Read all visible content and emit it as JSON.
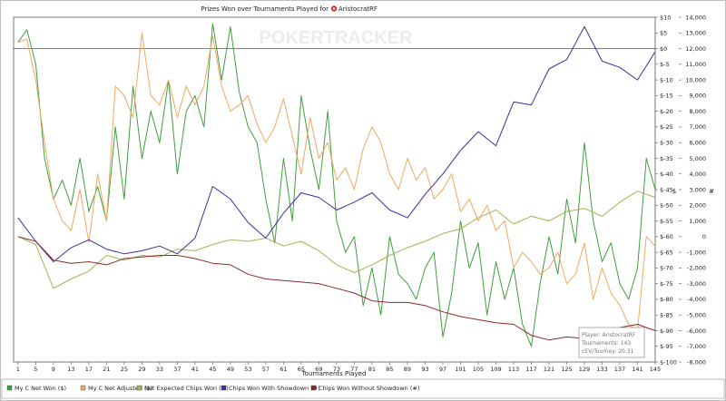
{
  "chart_data": {
    "type": "line",
    "title": "Prizes Won over Tournaments Played for",
    "player": "AristocratRF",
    "watermark": "POKERTRACKER",
    "xlabel": "Tournaments Played",
    "x_ticks": [
      1,
      5,
      9,
      13,
      17,
      21,
      25,
      29,
      33,
      37,
      41,
      45,
      49,
      53,
      57,
      61,
      65,
      69,
      73,
      77,
      81,
      85,
      89,
      93,
      97,
      101,
      105,
      109,
      113,
      117,
      121,
      125,
      129,
      133,
      137,
      141,
      145
    ],
    "xlim": [
      0,
      145
    ],
    "y_left": {
      "unit": "$",
      "ylim": [
        -100,
        10
      ],
      "tick_labels": [
        "$10",
        "$5",
        "$0",
        "$-5",
        "$-10",
        "$-15",
        "$-20",
        "$-25",
        "$-30",
        "$-35",
        "$-40",
        "$-45",
        "$-50",
        "$-55",
        "$-60",
        "$-65",
        "$-70",
        "$-75",
        "$-80",
        "$-85",
        "$-90",
        "$-95",
        "$-100"
      ]
    },
    "y_right": {
      "unit": "#",
      "ylim": [
        -8000,
        14000
      ],
      "tick_labels": [
        "14,000",
        "13,000",
        "12,000",
        "11,000",
        "10,000",
        "9,000",
        "8,000",
        "7,000",
        "6,000",
        "5,000",
        "4,000",
        "3,000",
        "2,000",
        "1,000",
        "0",
        "-1,000",
        "-2,000",
        "-3,000",
        "-4,000",
        "-5,000",
        "-6,000",
        "-7,000",
        "-8,000"
      ]
    },
    "grid": false,
    "legend_position": "bottom",
    "series": [
      {
        "name": "My C Net Won ($)",
        "color": "#3f9f3f",
        "axis": "left",
        "x": [
          1,
          3,
          5,
          7,
          9,
          11,
          13,
          15,
          17,
          19,
          21,
          23,
          25,
          27,
          29,
          31,
          33,
          35,
          37,
          39,
          41,
          43,
          45,
          47,
          49,
          51,
          53,
          55,
          57,
          59,
          61,
          63,
          65,
          67,
          69,
          71,
          73,
          75,
          77,
          79,
          81,
          83,
          85,
          87,
          89,
          91,
          93,
          95,
          97,
          99,
          101,
          103,
          105,
          107,
          109,
          111,
          113,
          115,
          117,
          119,
          121,
          123,
          125,
          127,
          129,
          131,
          133,
          135,
          137,
          139,
          141,
          143,
          145
        ],
        "y": [
          2,
          6,
          -5,
          -35,
          -48,
          -42,
          -50,
          -35,
          -52,
          -44,
          -55,
          -25,
          -48,
          -12,
          -35,
          -20,
          -30,
          -10,
          -40,
          -20,
          -15,
          -25,
          8,
          -10,
          7,
          -14,
          -25,
          -30,
          -48,
          -62,
          -35,
          -55,
          -15,
          -32,
          -45,
          -20,
          -55,
          -65,
          -60,
          -82,
          -70,
          -85,
          -60,
          -72,
          -75,
          -80,
          -70,
          -65,
          -92,
          -78,
          -55,
          -70,
          -62,
          -85,
          -68,
          -80,
          -70,
          -88,
          -95,
          -75,
          -60,
          -72,
          -48,
          -62,
          -30,
          -55,
          -68,
          -62,
          -75,
          -80,
          -70,
          -35,
          -45
        ]
      },
      {
        "name": "My C Net Adjusted ($)",
        "color": "#f0a860",
        "axis": "left",
        "x": [
          1,
          3,
          5,
          7,
          9,
          11,
          13,
          15,
          17,
          19,
          21,
          23,
          25,
          27,
          29,
          31,
          33,
          35,
          37,
          39,
          41,
          43,
          45,
          47,
          49,
          51,
          53,
          55,
          57,
          59,
          61,
          63,
          65,
          67,
          69,
          71,
          73,
          75,
          77,
          79,
          81,
          83,
          85,
          87,
          89,
          91,
          93,
          95,
          97,
          99,
          101,
          103,
          105,
          107,
          109,
          111,
          113,
          115,
          117,
          119,
          121,
          123,
          125,
          127,
          129,
          131,
          133,
          135,
          137,
          139,
          141,
          143,
          145
        ],
        "y": [
          2,
          3,
          -10,
          -30,
          -48,
          -55,
          -58,
          -45,
          -62,
          -40,
          -55,
          -12,
          -15,
          -22,
          5,
          -15,
          -18,
          -10,
          -22,
          -12,
          -18,
          -12,
          4,
          -12,
          -20,
          -18,
          -15,
          -24,
          -30,
          -25,
          -16,
          -28,
          -40,
          -22,
          -35,
          -30,
          -42,
          -38,
          -45,
          -32,
          -25,
          -30,
          -40,
          -45,
          -35,
          -42,
          -38,
          -48,
          -45,
          -40,
          -52,
          -48,
          -55,
          -50,
          -58,
          -55,
          -70,
          -65,
          -68,
          -72,
          -70,
          -65,
          -75,
          -72,
          -62,
          -80,
          -70,
          -78,
          -82,
          -88,
          -90,
          -60,
          -63
        ]
      },
      {
        "name": "Net Expected Chips Won (#)",
        "color": "#a8b050",
        "axis": "right",
        "x": [
          1,
          5,
          9,
          13,
          17,
          21,
          25,
          29,
          33,
          37,
          41,
          45,
          49,
          53,
          57,
          61,
          65,
          69,
          73,
          77,
          81,
          85,
          89,
          93,
          97,
          101,
          105,
          109,
          113,
          117,
          121,
          125,
          129,
          133,
          137,
          141,
          145
        ],
        "y": [
          0,
          -500,
          -3300,
          -2700,
          -2200,
          -1200,
          -1500,
          -1200,
          -1300,
          -800,
          -900,
          -500,
          -200,
          -300,
          -100,
          -600,
          -300,
          -900,
          -1800,
          -2300,
          -1800,
          -1200,
          -700,
          -300,
          200,
          500,
          1200,
          1700,
          800,
          1300,
          1000,
          1600,
          1800,
          1300,
          2200,
          2900,
          2500
        ]
      },
      {
        "name": "Chips Won With Showdown (#)",
        "color": "#3a2f9a",
        "axis": "right",
        "x": [
          1,
          5,
          9,
          13,
          17,
          21,
          25,
          29,
          33,
          37,
          41,
          45,
          49,
          53,
          57,
          61,
          65,
          69,
          73,
          77,
          81,
          85,
          89,
          93,
          97,
          101,
          105,
          109,
          113,
          117,
          121,
          125,
          129,
          133,
          137,
          141,
          145
        ],
        "y": [
          1200,
          -300,
          -1600,
          -700,
          -200,
          -800,
          -1100,
          -900,
          -600,
          -1100,
          -100,
          3200,
          2400,
          900,
          -100,
          1500,
          2800,
          2500,
          1700,
          2200,
          2800,
          1700,
          1200,
          2700,
          4000,
          5500,
          6700,
          5800,
          8600,
          8400,
          10700,
          11300,
          13400,
          11200,
          10800,
          10000,
          11800
        ]
      },
      {
        "name": "Chips Won Without Showdown (#)",
        "color": "#8c2a2a",
        "axis": "right",
        "x": [
          1,
          5,
          9,
          13,
          17,
          21,
          25,
          29,
          33,
          37,
          41,
          45,
          49,
          53,
          57,
          61,
          65,
          69,
          73,
          77,
          81,
          85,
          89,
          93,
          97,
          101,
          105,
          109,
          113,
          117,
          121,
          125,
          129,
          133,
          137,
          141,
          145
        ],
        "y": [
          0,
          -300,
          -1500,
          -1700,
          -1600,
          -1800,
          -1400,
          -1300,
          -1200,
          -1200,
          -1400,
          -1700,
          -1800,
          -2400,
          -2700,
          -2800,
          -2900,
          -3000,
          -3300,
          -3600,
          -4100,
          -4200,
          -4200,
          -4400,
          -4800,
          -5100,
          -5300,
          -5500,
          -5600,
          -6300,
          -6600,
          -6400,
          -6500,
          -6100,
          -5800,
          -5600,
          -6000
        ]
      }
    ],
    "tooltip": {
      "player": "Player: AristocratRF",
      "tournaments": "Tournaments: 143",
      "cev": "cEV/Tourney: 20.31"
    }
  }
}
